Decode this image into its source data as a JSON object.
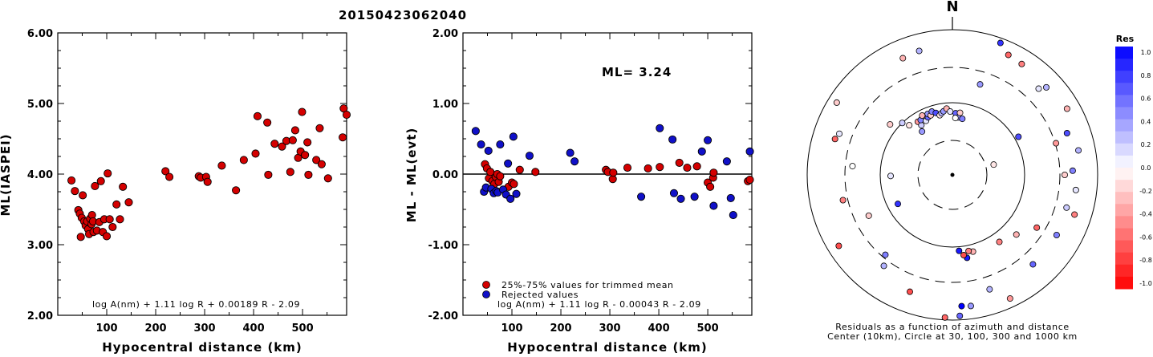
{
  "title": "20150423062040",
  "chart_data": [
    {
      "type": "scatter",
      "ylabel": "ML(IASPEI)",
      "xlabel": "Hypocentral distance (km)",
      "xlim": [
        0,
        590
      ],
      "ylim": [
        2.0,
        6.0
      ],
      "xticks": [
        "100",
        "200",
        "300",
        "400",
        "500"
      ],
      "yticks": [
        "2.00",
        "3.00",
        "4.00",
        "5.00",
        "6.00"
      ],
      "formula": "log A(nm) + 1.11 log R + 0.00189 R - 2.09",
      "points": [
        [
          28,
          3.91
        ],
        [
          35,
          3.76
        ],
        [
          42,
          3.49
        ],
        [
          45,
          3.44
        ],
        [
          47,
          3.11
        ],
        [
          49,
          3.38
        ],
        [
          51,
          3.7
        ],
        [
          54,
          3.33
        ],
        [
          57,
          3.27
        ],
        [
          60,
          3.33
        ],
        [
          62,
          3.22
        ],
        [
          64,
          3.15
        ],
        [
          66,
          3.37
        ],
        [
          69,
          3.29
        ],
        [
          70,
          3.42
        ],
        [
          72,
          3.33
        ],
        [
          73,
          3.18
        ],
        [
          76,
          3.83
        ],
        [
          80,
          3.2
        ],
        [
          85,
          3.32
        ],
        [
          88,
          3.9
        ],
        [
          92,
          3.18
        ],
        [
          95,
          3.36
        ],
        [
          100,
          3.12
        ],
        [
          102,
          4.01
        ],
        [
          106,
          3.36
        ],
        [
          112,
          3.25
        ],
        [
          120,
          3.57
        ],
        [
          127,
          3.36
        ],
        [
          133,
          3.82
        ],
        [
          145,
          3.6
        ],
        [
          220,
          4.04
        ],
        [
          228,
          3.96
        ],
        [
          288,
          3.97
        ],
        [
          292,
          3.95
        ],
        [
          303,
          3.96
        ],
        [
          306,
          3.89
        ],
        [
          335,
          4.12
        ],
        [
          364,
          3.77
        ],
        [
          380,
          4.2
        ],
        [
          404,
          4.29
        ],
        [
          408,
          4.82
        ],
        [
          428,
          4.73
        ],
        [
          430,
          3.99
        ],
        [
          443,
          4.43
        ],
        [
          458,
          4.39
        ],
        [
          467,
          4.47
        ],
        [
          475,
          4.03
        ],
        [
          480,
          4.48
        ],
        [
          485,
          4.62
        ],
        [
          491,
          4.23
        ],
        [
          496,
          4.32
        ],
        [
          499,
          4.88
        ],
        [
          505,
          4.27
        ],
        [
          510,
          4.45
        ],
        [
          512,
          3.99
        ],
        [
          528,
          4.2
        ],
        [
          535,
          4.65
        ],
        [
          539,
          4.14
        ],
        [
          552,
          3.94
        ],
        [
          582,
          4.52
        ],
        [
          584,
          4.93
        ],
        [
          590,
          4.84
        ]
      ]
    },
    {
      "type": "scatter",
      "ylabel": "ML - ML(evt)",
      "xlabel": "Hypocentral distance (km)",
      "xlim": [
        0,
        590
      ],
      "ylim": [
        -2.0,
        2.0
      ],
      "xticks": [
        "100",
        "200",
        "300",
        "400",
        "500"
      ],
      "yticks": [
        "-2.00",
        "-1.00",
        "0.00",
        "1.00",
        "2.00"
      ],
      "annotation": "ML= 3.24",
      "formula": "log A(nm) + 1.11 log R - 0.00043 R - 2.09",
      "legend": [
        {
          "label": "25%-75% values for trimmed mean",
          "color": "#d40000"
        },
        {
          "label": "Rejected values",
          "color": "#1010c8"
        }
      ],
      "series": [
        {
          "name": "25%-75% values for trimmed mean",
          "color": "#d40000",
          "points": [
            [
              45,
              0.14
            ],
            [
              49,
              0.08
            ],
            [
              53,
              -0.06
            ],
            [
              56,
              0.03
            ],
            [
              60,
              -0.1
            ],
            [
              64,
              -0.14
            ],
            [
              67,
              -0.04
            ],
            [
              70,
              0.0
            ],
            [
              73,
              -0.11
            ],
            [
              76,
              -0.03
            ],
            [
              93,
              -0.18
            ],
            [
              100,
              -0.12
            ],
            [
              104,
              -0.14
            ],
            [
              116,
              0.06
            ],
            [
              148,
              0.03
            ],
            [
              292,
              0.06
            ],
            [
              296,
              0.03
            ],
            [
              306,
              -0.07
            ],
            [
              307,
              0.02
            ],
            [
              336,
              0.09
            ],
            [
              378,
              0.08
            ],
            [
              402,
              0.1
            ],
            [
              442,
              0.16
            ],
            [
              458,
              0.09
            ],
            [
              478,
              0.11
            ],
            [
              500,
              -0.12
            ],
            [
              505,
              -0.18
            ],
            [
              511,
              -0.05
            ],
            [
              512,
              0.02
            ],
            [
              582,
              -0.1
            ],
            [
              586,
              -0.08
            ]
          ]
        },
        {
          "name": "Rejected values",
          "color": "#1010c8",
          "points": [
            [
              26,
              0.61
            ],
            [
              37,
              0.42
            ],
            [
              43,
              -0.25
            ],
            [
              47,
              -0.19
            ],
            [
              52,
              0.33
            ],
            [
              58,
              -0.21
            ],
            [
              63,
              -0.27
            ],
            [
              68,
              -0.24
            ],
            [
              71,
              -0.26
            ],
            [
              76,
              0.42
            ],
            [
              82,
              -0.22
            ],
            [
              88,
              -0.29
            ],
            [
              92,
              0.15
            ],
            [
              97,
              -0.35
            ],
            [
              103,
              0.53
            ],
            [
              109,
              -0.28
            ],
            [
              136,
              0.26
            ],
            [
              219,
              0.3
            ],
            [
              228,
              0.18
            ],
            [
              364,
              -0.32
            ],
            [
              402,
              0.65
            ],
            [
              428,
              0.49
            ],
            [
              431,
              -0.27
            ],
            [
              445,
              -0.35
            ],
            [
              473,
              -0.32
            ],
            [
              488,
              0.32
            ],
            [
              500,
              0.48
            ],
            [
              512,
              -0.45
            ],
            [
              539,
              0.18
            ],
            [
              547,
              -0.34
            ],
            [
              552,
              -0.58
            ],
            [
              586,
              0.32
            ]
          ]
        }
      ]
    }
  ],
  "polar": {
    "north_label": "N",
    "caption_line1": "Residuals as a function of azimuth and distance",
    "caption_line2": "Center (10km), Circle at 30, 100, 300 and 1000 km",
    "points": [
      [
        -73,
        153,
        -0.6
      ],
      [
        -51,
        100,
        -0.2
      ],
      [
        -70,
        150,
        0.1
      ],
      [
        -58,
        170,
        -0.2
      ],
      [
        -44,
        90,
        0.2
      ],
      [
        -15,
        160,
        0.3
      ],
      [
        20,
        175,
        0.8
      ],
      [
        17,
        118,
        0.4
      ],
      [
        -23,
        158,
        -0.3
      ],
      [
        25,
        165,
        -0.6
      ],
      [
        32,
        163,
        -0.5
      ],
      [
        45,
        152,
        0.1
      ],
      [
        47,
        160,
        0.3
      ],
      [
        60,
        165,
        -0.3
      ],
      [
        70,
        152,
        0.7
      ],
      [
        73,
        135,
        -0.4
      ],
      [
        79,
        160,
        0.3
      ],
      [
        88,
        150,
        0.5
      ],
      [
        90,
        140,
        -0.2
      ],
      [
        97,
        155,
        0.1
      ],
      [
        106,
        148,
        0.2
      ],
      [
        108,
        160,
        -0.5
      ],
      [
        120,
        150,
        0.5
      ],
      [
        138,
        150,
        0.6
      ],
      [
        155,
        170,
        -0.4
      ],
      [
        162,
        150,
        0.3
      ],
      [
        172,
        165,
        0.4
      ],
      [
        176,
        164,
        1.0
      ],
      [
        177,
        176,
        0.6
      ],
      [
        -177,
        178,
        -0.6
      ],
      [
        -160,
        155,
        -0.7
      ],
      [
        -143,
        142,
        0.3
      ],
      [
        -140,
        130,
        0.5
      ],
      [
        -122,
        167,
        -0.7
      ],
      [
        -103,
        140,
        -0.5
      ],
      [
        -85,
        125,
        0.0
      ],
      [
        -35,
        66,
        0.4
      ],
      [
        -41,
        82,
        -0.1
      ],
      [
        -33,
        79,
        -0.4
      ],
      [
        -32,
        73,
        0.2
      ],
      [
        -30,
        79,
        0.5
      ],
      [
        -27,
        83,
        -0.3
      ],
      [
        -26,
        75,
        0.1
      ],
      [
        -23,
        78,
        0.6
      ],
      [
        -22,
        82,
        0.4
      ],
      [
        -20,
        79,
        -0.2
      ],
      [
        -18,
        83,
        0.5
      ],
      [
        -15,
        80,
        0.7
      ],
      [
        -12,
        76,
        -0.1
      ],
      [
        -10,
        78,
        0.3
      ],
      [
        -8,
        80,
        0.4
      ],
      [
        -5,
        83,
        -0.3
      ],
      [
        -2,
        79,
        0.1
      ],
      [
        3,
        77,
        0.6
      ],
      [
        6,
        72,
        0.4
      ],
      [
        3,
        71,
        0.0
      ],
      [
        7,
        78,
        -0.2
      ],
      [
        10,
        71,
        0.5
      ],
      [
        60,
        95,
        0.7
      ],
      [
        76,
        53,
        -0.1
      ],
      [
        122,
        124,
        -0.6
      ],
      [
        133,
        109,
        -0.3
      ],
      [
        145,
        102,
        -0.5
      ],
      [
        165,
        99,
        -0.3
      ],
      [
        170,
        105,
        0.9
      ],
      [
        175,
        95,
        0.9
      ],
      [
        172,
        101,
        -0.7
      ],
      [
        168,
        97,
        -0.5
      ],
      [
        -118,
        77,
        0.8
      ],
      [
        -91,
        77,
        0.1
      ],
      [
        -116,
        116,
        -0.2
      ]
    ]
  },
  "colorbar": {
    "title": "Res",
    "labels": [
      "1.0",
      "0.8",
      "0.6",
      "0.4",
      "0.2",
      "0.0",
      "-0.2",
      "-0.4",
      "-0.6",
      "-0.8",
      "-1.0"
    ]
  }
}
